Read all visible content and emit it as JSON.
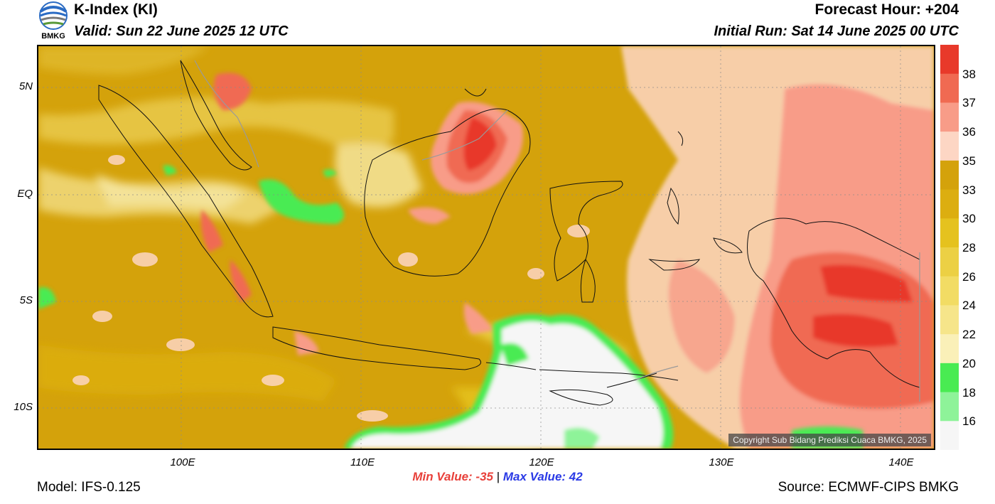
{
  "logo": {
    "text": "BMKG"
  },
  "header": {
    "title": "K-Index (KI)",
    "valid": "Valid: Sun 22 June 2025 12 UTC",
    "forecast_hour": "Forecast Hour: +204",
    "initial_run": "Initial Run: Sat 14 June 2025 00 UTC"
  },
  "axes": {
    "lat_labels": [
      "5N",
      "EQ",
      "5S",
      "10S"
    ],
    "lon_labels": [
      "100E",
      "110E",
      "120E",
      "130E",
      "140E"
    ]
  },
  "colorbar": {
    "labels": [
      "38",
      "37",
      "36",
      "35",
      "33",
      "30",
      "28",
      "26",
      "24",
      "22",
      "20",
      "18",
      "16"
    ],
    "colors": [
      "#e8392a",
      "#f06a52",
      "#f89c88",
      "#fdd6c4",
      "#d4a20b",
      "#dcae10",
      "#e5c21e",
      "#ecd044",
      "#f2dc64",
      "#f6e58a",
      "#faf0b8",
      "#49eb52",
      "#8ef399",
      "#f6f6f6"
    ]
  },
  "stats": {
    "min_label": "Min Value: -35",
    "sep": "|",
    "max_label": "Max Value:  42"
  },
  "footer": {
    "model": "Model: IFS-0.125",
    "source": "Source: ECMWF-CIPS BMKG",
    "copyright": "Copyright Sub Bidang Prediksi Cuaca BMKG, 2025"
  }
}
